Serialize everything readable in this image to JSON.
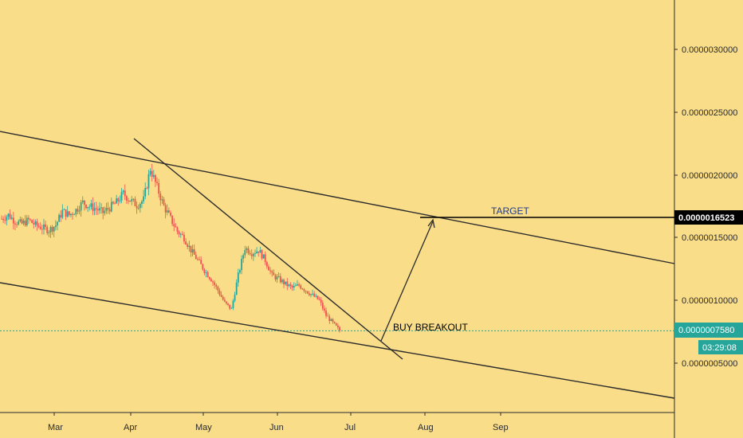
{
  "colors": {
    "background": "#f9dd89",
    "axis_line": "#2b2b2b",
    "trendline": "#2b2b2b",
    "candle_up": "#26a69a",
    "candle_down": "#ef5350",
    "price_badge": "#26a69a",
    "target_badge": "#000000",
    "current_price_line": "#26a69a",
    "target_text": "#1e3a8a",
    "buy_text": "#000000"
  },
  "price_axis": {
    "tick_labels": [
      "0.0000030000",
      "0.0000025000",
      "0.0000020000",
      "0.0000015000",
      "0.0000010000",
      "0.0000005000"
    ],
    "target_label": "0.0000016523",
    "current_label": "0.0000007580",
    "countdown": "03:29:08"
  },
  "time_axis": {
    "labels": [
      "Mar",
      "Apr",
      "May",
      "Jun",
      "Jul",
      "Aug",
      "Sep"
    ]
  },
  "annotations": {
    "target": "TARGET",
    "buy": "BUY BREAKOUT"
  },
  "chart_data": {
    "type": "candlestick",
    "ylim": [
      2e-07,
      3.3e-06
    ],
    "yticks": [
      3e-06,
      2.5e-06,
      2e-06,
      1.5e-06,
      1e-06,
      5e-07
    ],
    "current_price": 7.58e-07,
    "target_price": 1.6523e-06,
    "close_series": [
      1.65e-06,
      1.68e-06,
      1.63e-06,
      1.61e-06,
      1.64e-06,
      1.6e-06,
      1.58e-06,
      1.56e-06,
      1.6e-06,
      1.71e-06,
      1.68e-06,
      1.72e-06,
      1.78e-06,
      1.75e-06,
      1.73e-06,
      1.7e-06,
      1.74e-06,
      1.78e-06,
      1.85e-06,
      1.8e-06,
      1.76e-06,
      1.8e-06,
      2.05e-06,
      1.9e-06,
      1.75e-06,
      1.65e-06,
      1.55e-06,
      1.5e-06,
      1.4e-06,
      1.32e-06,
      1.24e-06,
      1.17e-06,
      1.08e-06,
      9.8e-07,
      9.3e-07,
      1.2e-06,
      1.42e-06,
      1.38e-06,
      1.4e-06,
      1.32e-06,
      1.2e-06,
      1.17e-06,
      1.13e-06,
      1.1e-06,
      1.12e-06,
      1.08e-06,
      1.04e-06,
      1e-06,
      8.8e-07,
      8.2e-07,
      7.6e-07
    ]
  }
}
